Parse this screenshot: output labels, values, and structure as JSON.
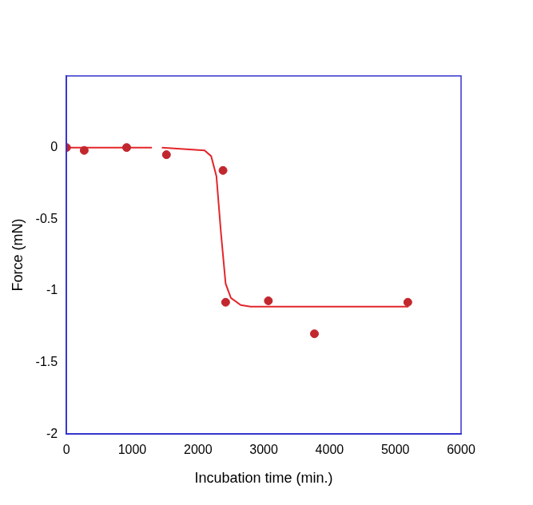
{
  "chart_data": {
    "type": "scatter",
    "x_label": "Incubation time (min.)",
    "y_label": "Force (mN)",
    "xlim": [
      0,
      6000
    ],
    "xticks": [
      0,
      1000,
      2000,
      3000,
      4000,
      5000,
      6000
    ],
    "ylim": [
      -2,
      0.5
    ],
    "yticks": [
      -2,
      -1.5,
      -1,
      -0.5,
      0
    ],
    "grid": false,
    "series": [
      {
        "type": "scatter",
        "color": "#c1272d",
        "marker": "circle",
        "x": [
          0,
          270,
          915,
          1520,
          2380,
          2420,
          3070,
          3770,
          5190
        ],
        "values": [
          0,
          -0.02,
          0,
          -0.05,
          -0.16,
          -1.08,
          -1.07,
          -1.3,
          -1.08
        ]
      },
      {
        "type": "line",
        "color": "#e3262b",
        "marker": "none",
        "line_style": "solid",
        "x": [
          0,
          1300,
          1380,
          1450,
          2100,
          2200,
          2280,
          2350,
          2420,
          2500,
          2650,
          2800,
          5200
        ],
        "values": [
          0,
          0,
          null,
          0,
          -0.02,
          -0.06,
          -0.2,
          -0.6,
          -0.95,
          -1.05,
          -1.1,
          -1.11,
          -1.11
        ]
      }
    ]
  }
}
